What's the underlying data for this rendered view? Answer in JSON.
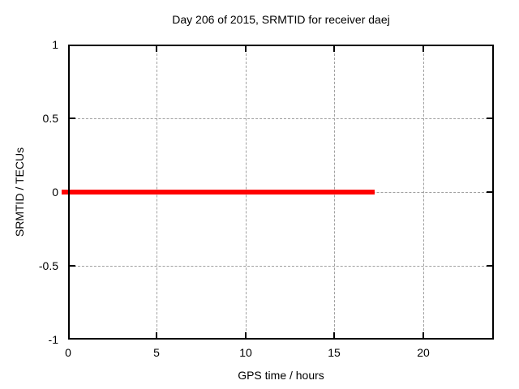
{
  "chart_data": {
    "type": "line",
    "title": "Day 206 of 2015, SRMTID for receiver daej",
    "xlabel": "GPS time / hours",
    "ylabel": "SRMTID / TECUs",
    "xlim": [
      0,
      24
    ],
    "ylim": [
      -1,
      1
    ],
    "xticks": [
      0,
      5,
      10,
      15,
      20
    ],
    "yticks": [
      1,
      0.5,
      0,
      -0.5,
      -1
    ],
    "grid": true,
    "legend_position": "none",
    "series": [
      {
        "name": "SRMTID",
        "color": "#ff0000",
        "style": "thick horizontal line",
        "y": 0,
        "x_start": 0,
        "x_end": 17.3,
        "points": [
          [
            0,
            0
          ],
          [
            17.3,
            0
          ]
        ]
      }
    ]
  },
  "colors": {
    "background": "#ffffff",
    "frame": "#000000",
    "grid": "#a0a0a0",
    "text": "#000000",
    "series": "#ff0000"
  }
}
